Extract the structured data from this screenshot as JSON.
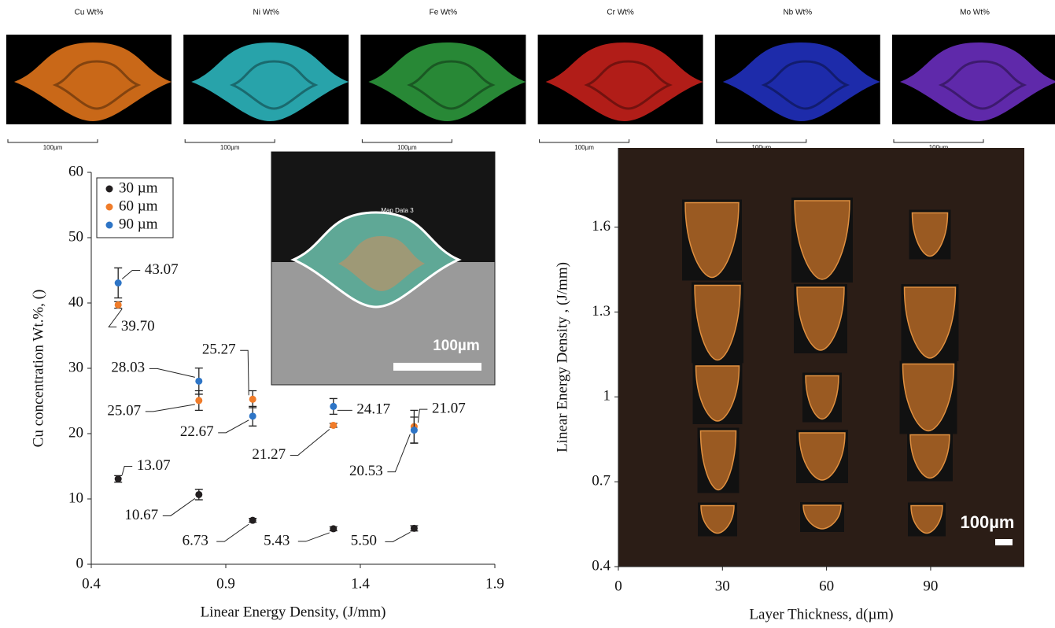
{
  "eds_maps": [
    {
      "title": "Cu Wt%",
      "scale_label": "100µm",
      "color": "#ec7a1c"
    },
    {
      "title": "Ni Wt%",
      "scale_label": "100µm",
      "color": "#2fc0c8"
    },
    {
      "title": "Fe Wt%",
      "scale_label": "100µm",
      "color": "#2fa040"
    },
    {
      "title": "Cr Wt%",
      "scale_label": "100µm",
      "color": "#d0221c"
    },
    {
      "title": "Nb Wt%",
      "scale_label": "100µm",
      "color": "#2232c8"
    },
    {
      "title": "Mo Wt%",
      "scale_label": "100µm",
      "color": "#7030c8"
    }
  ],
  "chart_data": [
    {
      "type": "scatter",
      "xlabel": "Linear Energy Density, (J/mm)",
      "ylabel": "Cu concentration Wt.%, ()",
      "xlim": [
        0.4,
        1.9
      ],
      "xticks": [
        0.4,
        0.9,
        1.4,
        1.9
      ],
      "ylim": [
        0,
        60
      ],
      "yticks": [
        0,
        10,
        20,
        30,
        40,
        50,
        60
      ],
      "legend": "upper left",
      "inset": {
        "caption": "Map Data 3",
        "scale_label": "100µm"
      },
      "series": [
        {
          "name": "30 µm",
          "color": "#231f20",
          "x": [
            0.5,
            0.8,
            1.0,
            1.3,
            1.6
          ],
          "values": [
            13.07,
            10.67,
            6.73,
            5.43,
            5.5
          ],
          "errors": [
            0.5,
            0.8,
            0.3,
            0.3,
            0.4
          ],
          "value_labels": [
            "13.07",
            "10.67",
            "6.73",
            "5.43",
            "5.50"
          ]
        },
        {
          "name": "60 µm",
          "color": "#f07c2a",
          "x": [
            0.5,
            0.8,
            1.0,
            1.3,
            1.6
          ],
          "values": [
            39.7,
            25.07,
            25.27,
            21.27,
            21.07
          ],
          "errors": [
            0.5,
            1.5,
            1.3,
            0.3,
            2.5
          ],
          "value_labels": [
            "39.70",
            "25.07",
            "25.27",
            "21.27",
            "21.07"
          ]
        },
        {
          "name": "90 µm",
          "color": "#2e75c6",
          "x": [
            0.5,
            0.8,
            1.0,
            1.3,
            1.6
          ],
          "values": [
            43.07,
            28.03,
            22.67,
            24.17,
            20.53
          ],
          "errors": [
            2.3,
            2.0,
            1.5,
            1.2,
            2.0
          ],
          "value_labels": [
            "43.07",
            "28.03",
            "22.67",
            "24.17",
            "20.53"
          ]
        }
      ]
    },
    {
      "type": "image",
      "xlabel": "Layer Thickness, d(µm)",
      "ylabel": "Linear Energy Density , (J/mm)",
      "xlim": [
        0,
        117
      ],
      "xticks": [
        0,
        30,
        60,
        90
      ],
      "ylim": [
        0.4,
        1.88
      ],
      "yticks": [
        0.4,
        0.7,
        1,
        1.3,
        1.6
      ],
      "scale_label": "100µm"
    }
  ]
}
